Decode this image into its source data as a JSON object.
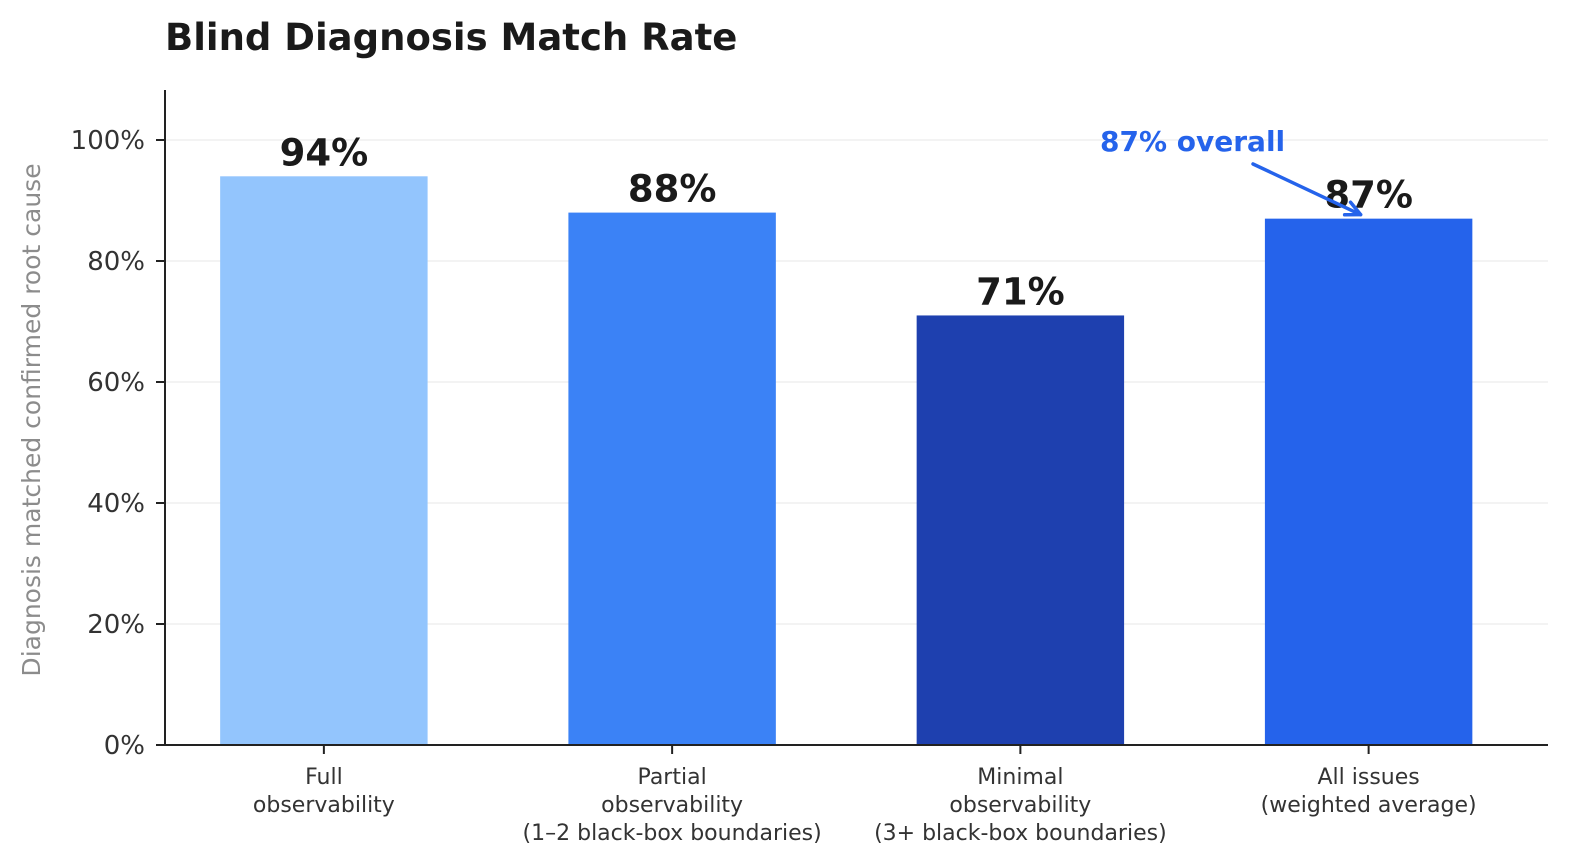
{
  "chart_data": {
    "type": "bar",
    "title": "Blind Diagnosis Match Rate",
    "xlabel": "",
    "ylabel": "Diagnosis matched confirmed root cause",
    "ylim": [
      0,
      109
    ],
    "yticks": [
      0,
      20,
      40,
      60,
      80,
      100
    ],
    "ytick_labels": [
      "0%",
      "20%",
      "40%",
      "60%",
      "80%",
      "100%"
    ],
    "grid": "y",
    "categories": [
      [
        "Full",
        "observability"
      ],
      [
        "Partial",
        "observability",
        "(1–2 black-box boundaries)"
      ],
      [
        "Minimal",
        "observability",
        "(3+ black-box boundaries)"
      ],
      [
        "All issues",
        "(weighted average)"
      ]
    ],
    "values": [
      94,
      88,
      71,
      87
    ],
    "data_labels": [
      "94%",
      "88%",
      "71%",
      "87%"
    ],
    "colors": [
      "#93c5fd",
      "#3b82f6",
      "#1e40af",
      "#2563eb"
    ],
    "annotation": {
      "text": "87% overall",
      "target_category_index": 3,
      "target_value": 87,
      "color": "#2563eb"
    }
  }
}
